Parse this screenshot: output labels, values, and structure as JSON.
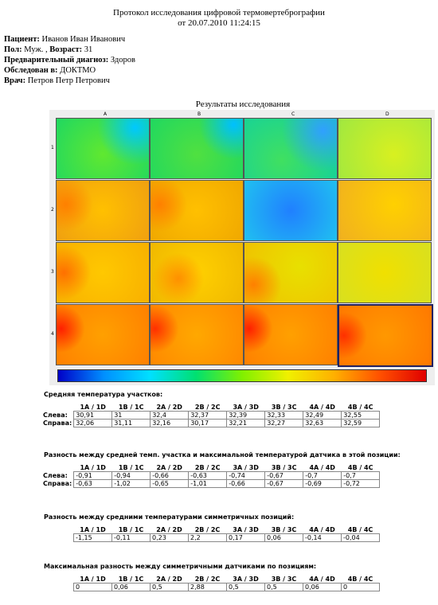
{
  "header": {
    "title": "Протокол исследования цифровой термовертебрографии",
    "date": "от 20.07.2010 11:24:15"
  },
  "patient": [
    {
      "label": "Пациент:",
      "value": "Иванов Иван Иванович"
    },
    {
      "label": "Пол:",
      "value": "Муж. ,"
    },
    {
      "label": "Возраст:",
      "value": "31"
    },
    {
      "label": "Предварительный диагноз:",
      "value": "Здоров"
    },
    {
      "label": "Обследован в:",
      "value": "ДОКТМО"
    },
    {
      "label": "Врач:",
      "value": "Петров Петр Петрович"
    }
  ],
  "results_title": "Результаты исследования",
  "heatmap": {
    "columns": [
      "A",
      "B",
      "C",
      "D"
    ],
    "rows": [
      "1",
      "2",
      "3",
      "4"
    ]
  },
  "tables": [
    {
      "title": "Средняя температура участков:",
      "columns": [
        "1A / 1D",
        "1B / 1C",
        "2A / 2D",
        "2B / 2C",
        "3A / 3D",
        "3B / 3C",
        "4A / 4D",
        "4B / 4C"
      ],
      "rows": [
        {
          "label": "Слева:",
          "cells": [
            "30,91",
            "31",
            "32,4",
            "32,37",
            "32,39",
            "32,33",
            "32,49",
            "32,55"
          ]
        },
        {
          "label": "Справа:",
          "cells": [
            "32,06",
            "31,11",
            "32,16",
            "30,17",
            "32,21",
            "32,27",
            "32,63",
            "32,59"
          ]
        }
      ]
    },
    {
      "title": "Разность между средней темп. участка и максимальной температурой датчика в этой позиции:",
      "columns": [
        "1A / 1D",
        "1B / 1C",
        "2A / 2D",
        "2B / 2C",
        "3A / 3D",
        "3B / 3C",
        "4A / 4D",
        "4B / 4C"
      ],
      "rows": [
        {
          "label": "Слева:",
          "cells": [
            "-0,91",
            "-0,94",
            "-0,66",
            "-0,63",
            "-0,74",
            "-0,67",
            "-0,7",
            "-0,7"
          ]
        },
        {
          "label": "Справа:",
          "cells": [
            "-0,63",
            "-1,02",
            "-0,65",
            "-1,01",
            "-0,66",
            "-0,67",
            "-0,69",
            "-0,72"
          ]
        }
      ]
    },
    {
      "title": "Разность между средними температурами симметричных позиций:",
      "columns": [
        "1A / 1D",
        "1B / 1C",
        "2A / 2D",
        "2B / 2C",
        "3A / 3D",
        "3B / 3C",
        "4A / 4D",
        "4B / 4C"
      ],
      "rows": [
        {
          "cells": [
            "-1,15",
            "-0,11",
            "0,23",
            "2,2",
            "0,17",
            "0,06",
            "-0,14",
            "-0,04"
          ]
        }
      ]
    },
    {
      "title": "Максимальная разность между симметричными датчиками по позициям:",
      "columns": [
        "1A / 1D",
        "1B / 1C",
        "2A / 2D",
        "2B / 2C",
        "3A / 3D",
        "3B / 3C",
        "4A / 4D",
        "4B / 4C"
      ],
      "rows": [
        {
          "cells": [
            "0",
            "0,06",
            "0,5",
            "2,88",
            "0,5",
            "0,5",
            "0,06",
            "0"
          ]
        }
      ]
    }
  ]
}
